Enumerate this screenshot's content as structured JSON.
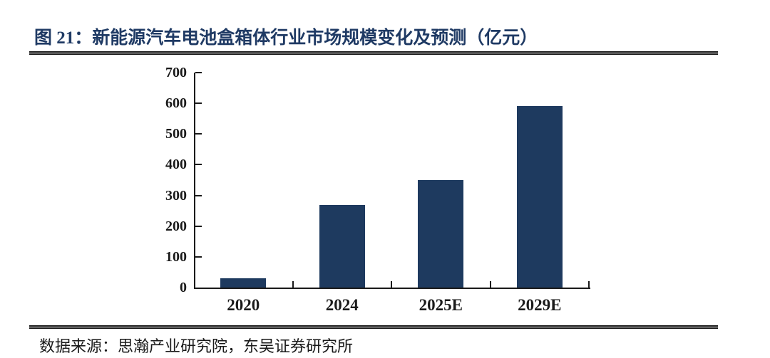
{
  "figure": {
    "title": "图 21：新能源汽车电池盒箱体行业市场规模变化及预测（亿元）",
    "source": "数据来源：思瀚产业研究院，东吴证券研究所"
  },
  "colors": {
    "bar": "#1E3A5F",
    "title_text": "#1F3A64",
    "rule": "#141414",
    "axis": "#1A1A1A",
    "tick_label_text": "#1A1A1A",
    "source_text": "#1A1A1A",
    "background": "#FFFFFF"
  },
  "chart_data": {
    "type": "bar",
    "categories": [
      "2020",
      "2024",
      "2025E",
      "2029E"
    ],
    "values": [
      30,
      270,
      350,
      590
    ],
    "title": "新能源汽车电池盒箱体行业市场规模变化及预测",
    "unit": "亿元",
    "xlabel": "",
    "ylabel": "",
    "ylim": [
      0,
      700
    ],
    "ytick_interval": 100,
    "yticks": [
      0,
      100,
      200,
      300,
      400,
      500,
      600,
      700
    ],
    "grid": false,
    "legend": null,
    "data_labels": false
  }
}
